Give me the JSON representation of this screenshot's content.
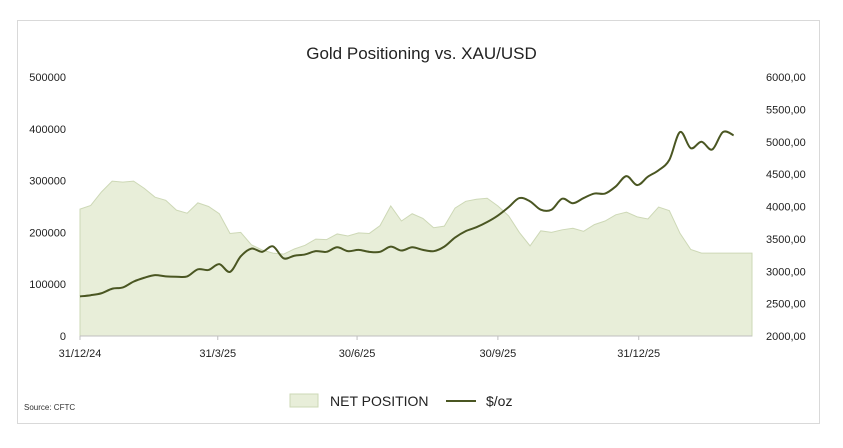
{
  "chart_data": {
    "type": "area",
    "title": "Gold Positioning vs. XAU/USD",
    "source": "Source: CFTC",
    "x_tick_labels": [
      "31/12/24",
      "31/3/25",
      "30/6/25",
      "30/9/25",
      "31/12/25"
    ],
    "x_range": [
      "2024-12-31",
      "2026-03-15"
    ],
    "y_left": {
      "range": [
        0,
        500000
      ],
      "tick_labels": [
        "0",
        "100000",
        "200000",
        "300000",
        "400000",
        "500000"
      ]
    },
    "y_right": {
      "range": [
        2000,
        6000
      ],
      "tick_labels": [
        "2000,00",
        "2500,00",
        "3000,00",
        "3500,00",
        "4000,00",
        "4500,00",
        "5000,00",
        "5500,00",
        "6000,00"
      ]
    },
    "grid": false,
    "legend_position": "bottom",
    "colors": {
      "net_fill": "#e8eed9",
      "net_stroke": "#cdd8b6",
      "price_line": "#4a5622"
    },
    "series": [
      {
        "name": "NET POSITION",
        "axis": "left",
        "render": "area",
        "points": [
          [
            "2024-12-31",
            245000
          ],
          [
            "2025-01-07",
            252000
          ],
          [
            "2025-01-14",
            278000
          ],
          [
            "2025-01-21",
            299000
          ],
          [
            "2025-01-28",
            297000
          ],
          [
            "2025-02-04",
            299000
          ],
          [
            "2025-02-11",
            285000
          ],
          [
            "2025-02-18",
            268000
          ],
          [
            "2025-02-25",
            262000
          ],
          [
            "2025-03-04",
            243000
          ],
          [
            "2025-03-11",
            237000
          ],
          [
            "2025-03-18",
            257000
          ],
          [
            "2025-03-25",
            250000
          ],
          [
            "2025-04-01",
            236000
          ],
          [
            "2025-04-08",
            198000
          ],
          [
            "2025-04-15",
            200000
          ],
          [
            "2025-04-22",
            176000
          ],
          [
            "2025-04-29",
            166000
          ],
          [
            "2025-05-06",
            160000
          ],
          [
            "2025-05-13",
            158000
          ],
          [
            "2025-05-20",
            168000
          ],
          [
            "2025-05-27",
            175000
          ],
          [
            "2025-06-03",
            187000
          ],
          [
            "2025-06-10",
            186000
          ],
          [
            "2025-06-17",
            197000
          ],
          [
            "2025-06-24",
            193000
          ],
          [
            "2025-07-01",
            199000
          ],
          [
            "2025-07-08",
            198000
          ],
          [
            "2025-07-15",
            213000
          ],
          [
            "2025-07-22",
            251000
          ],
          [
            "2025-07-29",
            222000
          ],
          [
            "2025-08-05",
            236000
          ],
          [
            "2025-08-12",
            227000
          ],
          [
            "2025-08-19",
            209000
          ],
          [
            "2025-08-26",
            212000
          ],
          [
            "2025-09-02",
            247000
          ],
          [
            "2025-09-09",
            260000
          ],
          [
            "2025-09-16",
            264000
          ],
          [
            "2025-09-23",
            266000
          ],
          [
            "2025-09-30",
            251000
          ],
          [
            "2025-10-07",
            232000
          ],
          [
            "2025-10-14",
            200000
          ],
          [
            "2025-10-21",
            174000
          ],
          [
            "2025-10-28",
            203000
          ],
          [
            "2025-11-04",
            200000
          ],
          [
            "2025-11-11",
            205000
          ],
          [
            "2025-11-18",
            208000
          ],
          [
            "2025-11-25",
            202000
          ],
          [
            "2025-12-02",
            215000
          ],
          [
            "2025-12-09",
            222000
          ],
          [
            "2025-12-16",
            234000
          ],
          [
            "2025-12-23",
            239000
          ],
          [
            "2025-12-30",
            230000
          ],
          [
            "2026-01-06",
            226000
          ],
          [
            "2026-01-13",
            249000
          ],
          [
            "2026-01-20",
            242000
          ],
          [
            "2026-01-27",
            198000
          ],
          [
            "2026-02-03",
            167000
          ],
          [
            "2026-02-10",
            160000
          ],
          [
            "2026-02-17",
            160000
          ],
          [
            "2026-02-24",
            160000
          ],
          [
            "2026-03-03",
            160000
          ],
          [
            "2026-03-10",
            160000
          ],
          [
            "2026-03-15",
            160000
          ]
        ]
      },
      {
        "name": "$/oz",
        "axis": "right",
        "render": "line",
        "points": [
          [
            "2024-12-31",
            2612
          ],
          [
            "2025-01-07",
            2630
          ],
          [
            "2025-01-14",
            2660
          ],
          [
            "2025-01-21",
            2730
          ],
          [
            "2025-01-28",
            2750
          ],
          [
            "2025-02-04",
            2840
          ],
          [
            "2025-02-11",
            2900
          ],
          [
            "2025-02-18",
            2940
          ],
          [
            "2025-02-25",
            2920
          ],
          [
            "2025-03-04",
            2915
          ],
          [
            "2025-03-11",
            2920
          ],
          [
            "2025-03-18",
            3030
          ],
          [
            "2025-03-25",
            3020
          ],
          [
            "2025-04-01",
            3110
          ],
          [
            "2025-04-08",
            2990
          ],
          [
            "2025-04-15",
            3230
          ],
          [
            "2025-04-22",
            3350
          ],
          [
            "2025-04-29",
            3300
          ],
          [
            "2025-05-06",
            3385
          ],
          [
            "2025-05-13",
            3200
          ],
          [
            "2025-05-20",
            3240
          ],
          [
            "2025-05-27",
            3260
          ],
          [
            "2025-06-03",
            3310
          ],
          [
            "2025-06-10",
            3300
          ],
          [
            "2025-06-17",
            3370
          ],
          [
            "2025-06-24",
            3310
          ],
          [
            "2025-07-01",
            3330
          ],
          [
            "2025-07-08",
            3300
          ],
          [
            "2025-07-15",
            3300
          ],
          [
            "2025-07-22",
            3380
          ],
          [
            "2025-07-29",
            3320
          ],
          [
            "2025-08-05",
            3370
          ],
          [
            "2025-08-12",
            3330
          ],
          [
            "2025-08-19",
            3310
          ],
          [
            "2025-08-26",
            3380
          ],
          [
            "2025-09-02",
            3520
          ],
          [
            "2025-09-09",
            3620
          ],
          [
            "2025-09-16",
            3680
          ],
          [
            "2025-09-23",
            3760
          ],
          [
            "2025-09-30",
            3860
          ],
          [
            "2025-10-07",
            3990
          ],
          [
            "2025-10-14",
            4130
          ],
          [
            "2025-10-21",
            4080
          ],
          [
            "2025-10-28",
            3950
          ],
          [
            "2025-11-04",
            3950
          ],
          [
            "2025-11-11",
            4120
          ],
          [
            "2025-11-18",
            4050
          ],
          [
            "2025-11-25",
            4130
          ],
          [
            "2025-12-02",
            4200
          ],
          [
            "2025-12-09",
            4200
          ],
          [
            "2025-12-16",
            4310
          ],
          [
            "2025-12-23",
            4470
          ],
          [
            "2025-12-30",
            4330
          ],
          [
            "2026-01-06",
            4460
          ],
          [
            "2026-01-13",
            4560
          ],
          [
            "2026-01-20",
            4720
          ],
          [
            "2026-01-27",
            5150
          ],
          [
            "2026-02-03",
            4900
          ],
          [
            "2026-02-10",
            5000
          ],
          [
            "2026-02-17",
            4880
          ],
          [
            "2026-02-24",
            5150
          ],
          [
            "2026-03-03",
            5100
          ]
        ]
      }
    ]
  }
}
